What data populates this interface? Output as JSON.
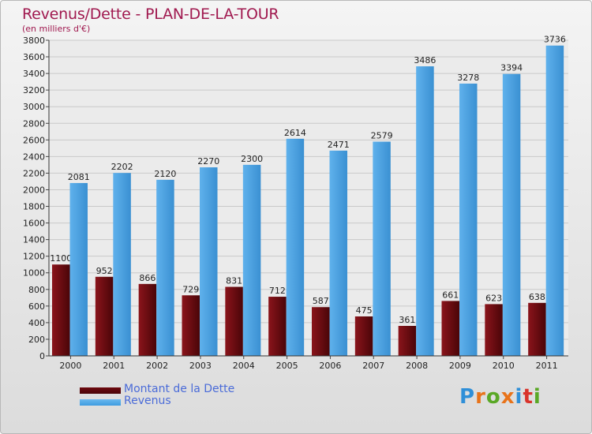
{
  "chart_data": {
    "type": "bar",
    "title": "Revenus/Dette - PLAN-DE-LA-TOUR",
    "subtitle": "(en milliers d'€)",
    "categories": [
      "2000",
      "2001",
      "2002",
      "2003",
      "2004",
      "2005",
      "2006",
      "2007",
      "2008",
      "2009",
      "2010",
      "2011"
    ],
    "series": [
      {
        "name": "Montant de la Dette",
        "color": "#6e0a10",
        "values": [
          1100,
          952,
          866,
          729,
          831,
          712,
          587,
          475,
          361,
          661,
          623,
          638
        ]
      },
      {
        "name": "Revenus",
        "color": "#3f9ce0",
        "values": [
          2081,
          2202,
          2120,
          2270,
          2300,
          2614,
          2471,
          2579,
          3486,
          3278,
          3394,
          3736
        ]
      }
    ],
    "ylim": [
      0,
      3800
    ],
    "ytick_step": 200,
    "grid": true,
    "legend": "bottom-left"
  },
  "logo": {
    "text": "Proxiti",
    "letter_colors": [
      "#2f8fd8",
      "#e8731a",
      "#5aa826",
      "#e8731a",
      "#2f8fd8",
      "#d9342b",
      "#5aa826"
    ]
  }
}
